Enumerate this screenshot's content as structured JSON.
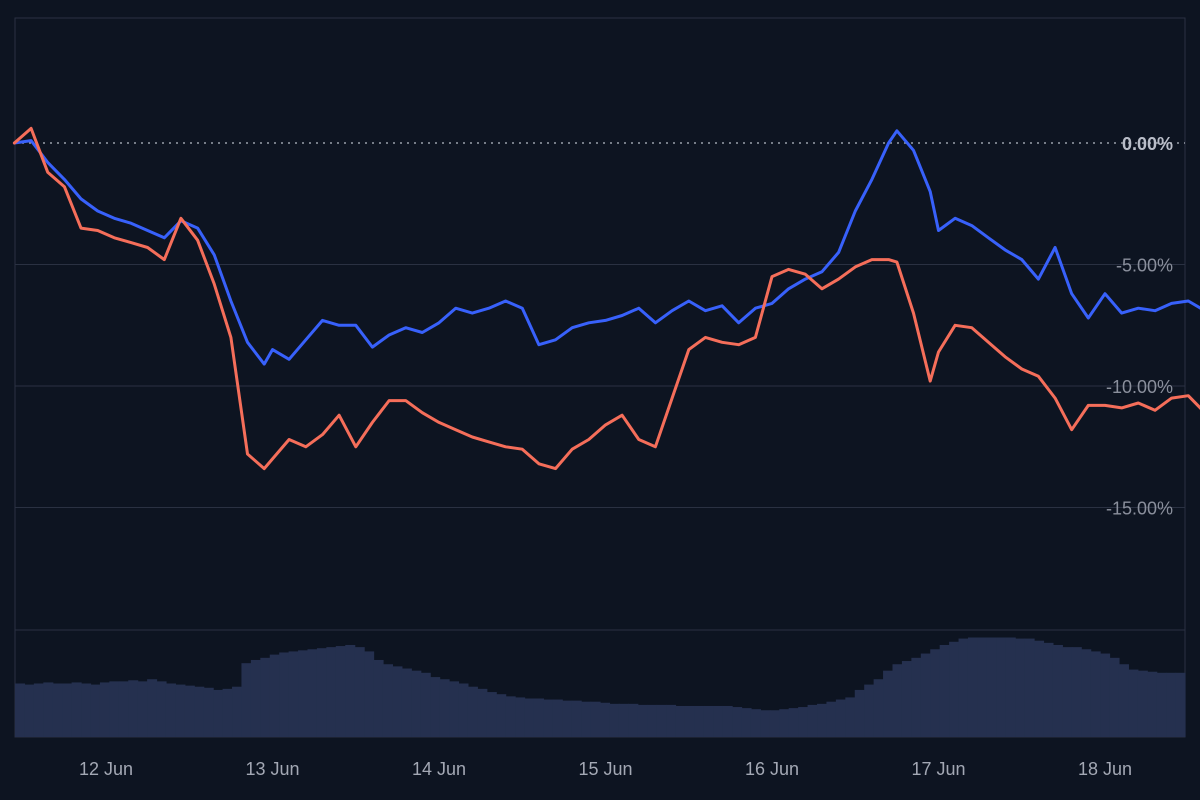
{
  "chart_data": {
    "type": "line",
    "title": "",
    "xlabel": "",
    "ylabel": "",
    "x_ticks": [
      "12 Jun",
      "13 Jun",
      "14 Jun",
      "15 Jun",
      "16 Jun",
      "17 Jun",
      "18 Jun"
    ],
    "y_ticks": [
      "0.00%",
      "-5.00%",
      "-10.00%",
      "-15.00%"
    ],
    "y_tick_values": [
      0,
      -5,
      -10,
      -15
    ],
    "ylim": [
      -20,
      5
    ],
    "xlim": [
      "11 Jun 12:00",
      "18 Jun 13:00"
    ],
    "grid": "horizontal",
    "legend": "none",
    "colors": {
      "background": "#0d1421",
      "frame": "#2a3142",
      "grid": "#2a3142",
      "baseline": "#9aa0aa",
      "series_blue": "#3861fb",
      "series_red": "#f56e5a",
      "volume": "#25304f"
    },
    "series": [
      {
        "color": "#3861fb",
        "x": [
          -0.55,
          -0.45,
          -0.35,
          -0.25,
          -0.15,
          -0.05,
          0.05,
          0.15,
          0.25,
          0.35,
          0.45,
          0.55,
          0.65,
          0.75,
          0.85,
          0.95,
          1.0,
          1.1,
          1.2,
          1.3,
          1.4,
          1.5,
          1.6,
          1.7,
          1.8,
          1.9,
          2.0,
          2.1,
          2.2,
          2.3,
          2.4,
          2.5,
          2.6,
          2.7,
          2.8,
          2.9,
          3.0,
          3.1,
          3.2,
          3.3,
          3.4,
          3.5,
          3.6,
          3.7,
          3.8,
          3.9,
          4.0,
          4.1,
          4.2,
          4.3,
          4.4,
          4.5,
          4.6,
          4.7,
          4.75,
          4.85,
          4.95,
          5.0,
          5.1,
          5.2,
          5.3,
          5.4,
          5.5,
          5.6,
          5.7,
          5.8,
          5.9,
          6.0,
          6.1,
          6.2,
          6.3,
          6.4,
          6.5,
          6.6,
          6.7
        ],
        "y": [
          0,
          0.1,
          -0.8,
          -1.5,
          -2.3,
          -2.8,
          -3.1,
          -3.3,
          -3.6,
          -3.9,
          -3.2,
          -3.5,
          -4.6,
          -6.5,
          -8.2,
          -9.1,
          -8.5,
          -8.9,
          -8.1,
          -7.3,
          -7.5,
          -7.5,
          -8.4,
          -7.9,
          -7.6,
          -7.8,
          -7.4,
          -6.8,
          -7.0,
          -6.8,
          -6.5,
          -6.8,
          -8.3,
          -8.1,
          -7.6,
          -7.4,
          -7.3,
          -7.1,
          -6.8,
          -7.4,
          -6.9,
          -6.5,
          -6.9,
          -6.7,
          -7.4,
          -6.8,
          -6.6,
          -6.0,
          -5.6,
          -5.3,
          -4.5,
          -2.8,
          -1.5,
          0.0,
          0.5,
          -0.3,
          -2.0,
          -3.6,
          -3.1,
          -3.4,
          -3.9,
          -4.4,
          -4.8,
          -5.6,
          -4.3,
          -6.2,
          -7.2,
          -6.2,
          -7.0,
          -6.8,
          -6.9,
          -6.6,
          -6.5,
          -6.9,
          -7.0
        ]
      },
      {
        "color": "#f56e5a",
        "x": [
          -0.55,
          -0.45,
          -0.35,
          -0.25,
          -0.15,
          -0.05,
          0.05,
          0.15,
          0.25,
          0.35,
          0.45,
          0.55,
          0.65,
          0.75,
          0.85,
          0.95,
          1.0,
          1.1,
          1.2,
          1.3,
          1.4,
          1.5,
          1.6,
          1.7,
          1.8,
          1.9,
          2.0,
          2.1,
          2.2,
          2.3,
          2.4,
          2.5,
          2.6,
          2.7,
          2.8,
          2.9,
          3.0,
          3.1,
          3.2,
          3.3,
          3.4,
          3.5,
          3.6,
          3.7,
          3.8,
          3.9,
          4.0,
          4.1,
          4.2,
          4.3,
          4.4,
          4.5,
          4.6,
          4.7,
          4.75,
          4.85,
          4.95,
          5.0,
          5.1,
          5.2,
          5.3,
          5.4,
          5.5,
          5.6,
          5.7,
          5.8,
          5.9,
          6.0,
          6.1,
          6.2,
          6.3,
          6.4,
          6.5,
          6.6,
          6.7
        ],
        "y": [
          0,
          0.6,
          -1.2,
          -1.8,
          -3.5,
          -3.6,
          -3.9,
          -4.1,
          -4.3,
          -4.8,
          -3.1,
          -4.0,
          -5.8,
          -8.0,
          -12.8,
          -13.4,
          -13.0,
          -12.2,
          -12.5,
          -12.0,
          -11.2,
          -12.5,
          -11.5,
          -10.6,
          -10.6,
          -11.1,
          -11.5,
          -11.8,
          -12.1,
          -12.3,
          -12.5,
          -12.6,
          -13.2,
          -13.4,
          -12.6,
          -12.2,
          -11.6,
          -11.2,
          -12.2,
          -12.5,
          -10.5,
          -8.5,
          -8.0,
          -8.2,
          -8.3,
          -8.0,
          -5.5,
          -5.2,
          -5.4,
          -6.0,
          -5.6,
          -5.1,
          -4.8,
          -4.8,
          -4.9,
          -7.0,
          -9.8,
          -8.6,
          -7.5,
          -7.6,
          -8.2,
          -8.8,
          -9.3,
          -9.6,
          -10.5,
          -11.8,
          -10.8,
          -10.8,
          -10.9,
          -10.7,
          -11.0,
          -10.5,
          -10.4,
          -11.1,
          -10.8
        ]
      }
    ],
    "volume": [
      0.5,
      0.49,
      0.5,
      0.51,
      0.5,
      0.5,
      0.51,
      0.5,
      0.49,
      0.51,
      0.52,
      0.52,
      0.53,
      0.52,
      0.54,
      0.52,
      0.5,
      0.49,
      0.48,
      0.47,
      0.46,
      0.44,
      0.45,
      0.47,
      0.69,
      0.72,
      0.74,
      0.77,
      0.79,
      0.8,
      0.81,
      0.82,
      0.83,
      0.84,
      0.85,
      0.86,
      0.84,
      0.8,
      0.72,
      0.68,
      0.66,
      0.64,
      0.62,
      0.6,
      0.56,
      0.54,
      0.52,
      0.5,
      0.47,
      0.45,
      0.42,
      0.4,
      0.38,
      0.37,
      0.36,
      0.36,
      0.35,
      0.35,
      0.34,
      0.34,
      0.33,
      0.33,
      0.32,
      0.31,
      0.31,
      0.31,
      0.3,
      0.3,
      0.3,
      0.3,
      0.29,
      0.29,
      0.29,
      0.29,
      0.29,
      0.29,
      0.28,
      0.27,
      0.26,
      0.25,
      0.25,
      0.26,
      0.27,
      0.28,
      0.3,
      0.31,
      0.33,
      0.35,
      0.37,
      0.44,
      0.49,
      0.54,
      0.62,
      0.68,
      0.71,
      0.74,
      0.78,
      0.82,
      0.86,
      0.89,
      0.92,
      0.93,
      0.93,
      0.93,
      0.93,
      0.93,
      0.92,
      0.92,
      0.9,
      0.88,
      0.86,
      0.84,
      0.84,
      0.82,
      0.8,
      0.78,
      0.74,
      0.68,
      0.63,
      0.62,
      0.61,
      0.6,
      0.6,
      0.6
    ]
  }
}
